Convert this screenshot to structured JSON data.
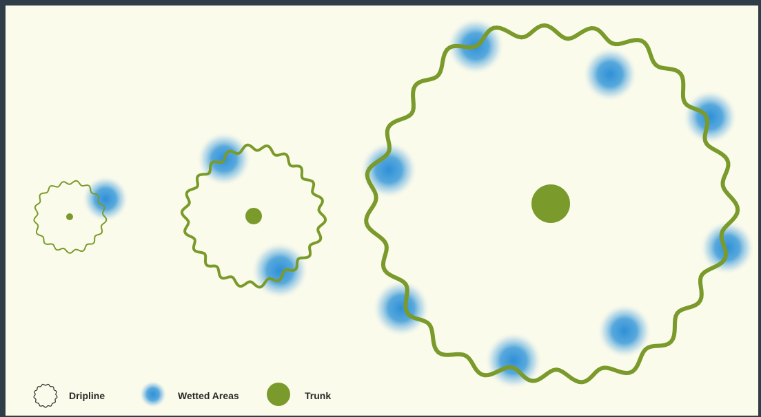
{
  "colors": {
    "border": "#2f3d48",
    "background": "#fbfbeb",
    "dripline": "#7a9a2b",
    "trunk": "#7a9a2b",
    "wetted": "#3a9ad9",
    "text": "#2a2a2a"
  },
  "trees": [
    {
      "id": "small-tree",
      "wetted_spots": 1
    },
    {
      "id": "medium-tree",
      "wetted_spots": 2
    },
    {
      "id": "large-tree",
      "wetted_spots": 8
    }
  ],
  "legend": {
    "dripline_label": "Dripline",
    "wetted_label": "Wetted Areas",
    "trunk_label": "Trunk"
  }
}
